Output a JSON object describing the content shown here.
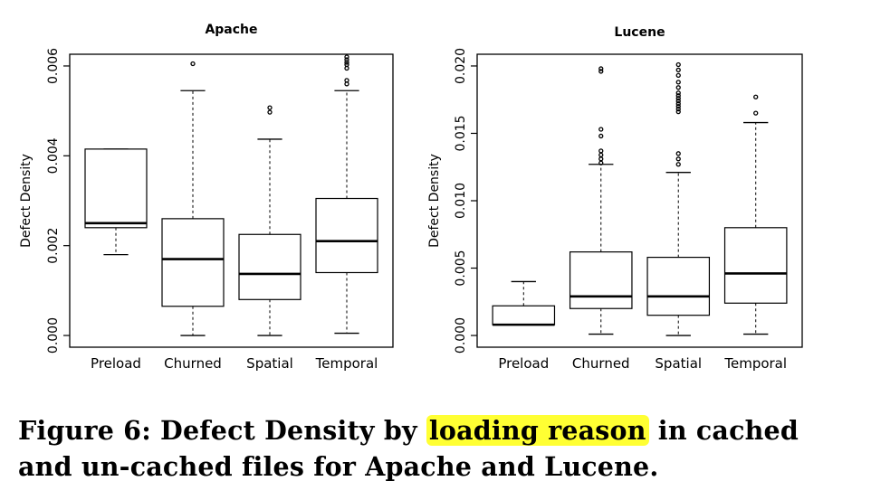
{
  "chart_data": [
    {
      "type": "box",
      "title": "Apache",
      "ylabel": "Defect Density",
      "ylim": [
        0,
        0.006
      ],
      "yticks": [
        "0.000",
        "0.002",
        "0.004",
        "0.006"
      ],
      "categories": [
        "Preload",
        "Churned",
        "Spatial",
        "Temporal"
      ],
      "boxes": [
        {
          "name": "Preload",
          "min": 0.0018,
          "q1": 0.0024,
          "median": 0.0025,
          "q3": 0.00415,
          "max": 0.00415,
          "outliers": []
        },
        {
          "name": "Churned",
          "min": 0.0,
          "q1": 0.00065,
          "median": 0.0017,
          "q3": 0.0026,
          "max": 0.00545,
          "outliers": [
            0.00605
          ]
        },
        {
          "name": "Spatial",
          "min": 0.0,
          "q1": 0.0008,
          "median": 0.00137,
          "q3": 0.00225,
          "max": 0.00437,
          "outliers": [
            0.00497,
            0.00507
          ]
        },
        {
          "name": "Temporal",
          "min": 5e-05,
          "q1": 0.0014,
          "median": 0.0021,
          "q3": 0.00305,
          "max": 0.00545,
          "outliers": [
            0.0056,
            0.00568,
            0.00595,
            0.00603,
            0.00608,
            0.00614,
            0.0062
          ]
        }
      ]
    },
    {
      "type": "box",
      "title": "Lucene",
      "ylabel": "Defect Density",
      "ylim": [
        0,
        0.02
      ],
      "yticks": [
        "0.000",
        "0.005",
        "0.010",
        "0.015",
        "0.020"
      ],
      "categories": [
        "Preload",
        "Churned",
        "Spatial",
        "Temporal"
      ],
      "boxes": [
        {
          "name": "Preload",
          "min": 0.0008,
          "q1": 0.0008,
          "median": 0.0008,
          "q3": 0.0022,
          "max": 0.004,
          "outliers": []
        },
        {
          "name": "Churned",
          "min": 0.0001,
          "q1": 0.002,
          "median": 0.0029,
          "q3": 0.0062,
          "max": 0.0127,
          "outliers": [
            0.0128,
            0.0131,
            0.0134,
            0.0137,
            0.0148,
            0.0153,
            0.0196,
            0.0198
          ]
        },
        {
          "name": "Spatial",
          "min": 0.0,
          "q1": 0.0015,
          "median": 0.0029,
          "q3": 0.0058,
          "max": 0.0121,
          "outliers": [
            0.0127,
            0.0131,
            0.0135,
            0.0166,
            0.0168,
            0.017,
            0.0172,
            0.0174,
            0.0176,
            0.0178,
            0.018,
            0.0184,
            0.0188,
            0.0193,
            0.0197,
            0.0201
          ]
        },
        {
          "name": "Temporal",
          "min": 0.0001,
          "q1": 0.0024,
          "median": 0.0046,
          "q3": 0.008,
          "max": 0.0158,
          "outliers": [
            0.0165,
            0.0177
          ]
        }
      ]
    }
  ],
  "caption": {
    "prefix": "Figure 6:  Defect Density by ",
    "highlight": "loading reason",
    "suffix": " in cached and un-cached files for Apache and Lucene."
  },
  "colors": {
    "highlight": "#ffff33"
  }
}
